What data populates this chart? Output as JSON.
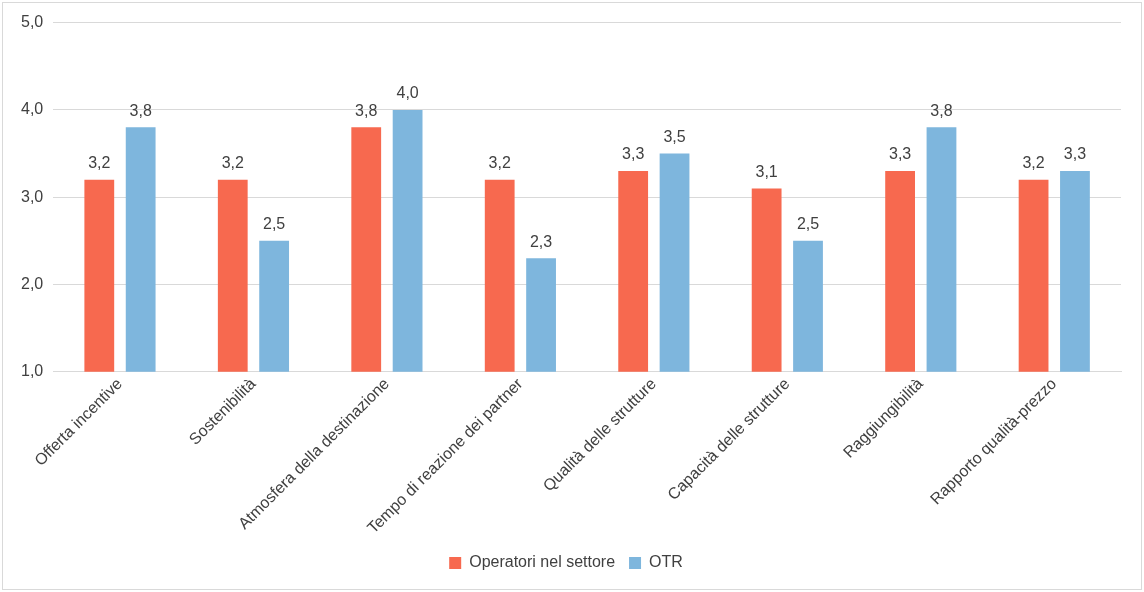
{
  "chart_data": {
    "type": "bar",
    "categories": [
      "Offerta incentive",
      "Sostenibilità",
      "Atmosfera della destinazione",
      "Tempo di reazione dei partner",
      "Qualità delle strutture",
      "Capacità delle strutture",
      "Raggiungibilità",
      "Rapporto qualità-prezzo"
    ],
    "series": [
      {
        "name": "Operatori nel settore",
        "color": "#f7694f",
        "values": [
          3.2,
          3.2,
          3.8,
          3.2,
          3.3,
          3.1,
          3.3,
          3.2
        ],
        "value_labels": [
          "3,2",
          "3,2",
          "3,8",
          "3,2",
          "3,3",
          "3,1",
          "3,3",
          "3,2"
        ]
      },
      {
        "name": "OTR",
        "color": "#7eb6dd",
        "values": [
          3.8,
          2.5,
          4.0,
          2.3,
          3.5,
          2.5,
          3.8,
          3.3
        ],
        "value_labels": [
          "3,8",
          "2,5",
          "4,0",
          "2,3",
          "3,5",
          "2,5",
          "3,8",
          "3,3"
        ]
      }
    ],
    "ylim": [
      1,
      5
    ],
    "yticks": [
      {
        "value": 1,
        "label": "1,0"
      },
      {
        "value": 2,
        "label": "2,0"
      },
      {
        "value": 3,
        "label": "3,0"
      },
      {
        "value": 4,
        "label": "4,0"
      },
      {
        "value": 5,
        "label": "5,0"
      }
    ],
    "grid": "y",
    "legend": "bottom"
  }
}
